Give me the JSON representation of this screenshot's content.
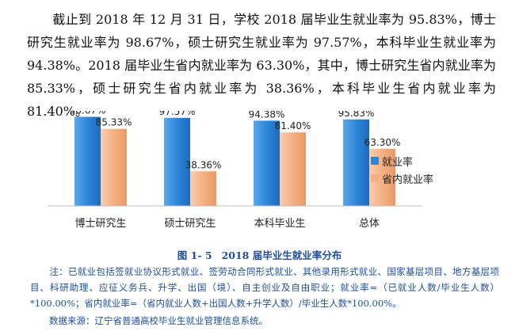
{
  "document": {
    "paragraph": "截止到 2018 年 12 月 31 日，学校 2018 届毕业生就业率为 95.83%，博士研究生就业率为 98.67%，硕士研究生就业率为 97.57%，本科毕业生就业率为 94.38%。2018 届毕业生省内就业率为 63.30%，其中，博士研究生省内就业率为 85.33%，硕士研究生省内就业率为 38.36%，本科毕业生省内就业率为 81.40%。",
    "figure_number": "图 1- 5",
    "figure_title": "2018 届毕业生就业率分布",
    "note": "注：已就业包括签就业协议形式就业、签劳动合同形式就业、其他录用形式就业、国家基层项目、地方基层项目、科研助理、应征义务兵、升学、出国（境）、自主创业及自由职业；就业率=（已就业人数/毕业生人数）*100.00%；省内就业率=（省内就业人数+出国人数+升学人数）/毕业生人数*100.00%。",
    "source": "数据来源：辽宁省普通高校毕业生就业管理信息系统。"
  },
  "chart_data": {
    "type": "bar",
    "categories": [
      "博士研究生",
      "硕士研究生",
      "本科毕业生",
      "总体"
    ],
    "series": [
      {
        "name": "就业率",
        "values": [
          98.67,
          97.57,
          94.38,
          95.83
        ],
        "labels": [
          "98.67%",
          "97.57%",
          "94.38%",
          "95.83%"
        ],
        "color": "#2e86d9"
      },
      {
        "name": "省内就业率",
        "values": [
          85.33,
          38.36,
          81.4,
          63.3
        ],
        "labels": [
          "85.33%",
          "38.36%",
          "81.40%",
          "63.30%"
        ],
        "color": "#f4b183"
      }
    ],
    "ylim": [
      0,
      100
    ],
    "grid": false,
    "legend_position": "right"
  }
}
